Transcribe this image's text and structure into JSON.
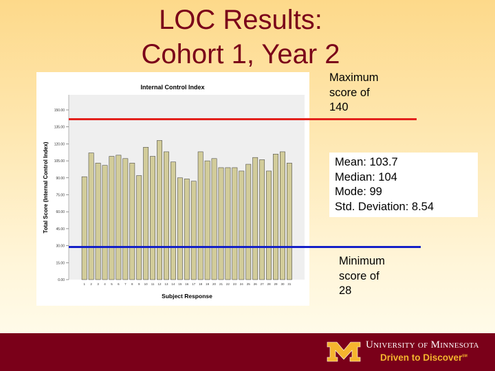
{
  "slide": {
    "title_line1": "LOC Results:",
    "title_line2": "Cohort 1, Year 2",
    "max_note": [
      "Maximum",
      "score of",
      "140"
    ],
    "min_note": [
      "Minimum",
      "score of",
      "28"
    ],
    "stats": [
      "Mean: 103.7",
      "Median: 104",
      "Mode: 99",
      "Std. Deviation: 8.54"
    ],
    "max_line": {
      "value": 140,
      "color": "#e3211c"
    },
    "min_line": {
      "value": 28,
      "color": "#1420c8"
    }
  },
  "footer": {
    "university": "University of Minnesota",
    "tagline": "Driven to Discover",
    "tagline_mark": "SM",
    "background": "#7a0019",
    "accent": "#f5b52e"
  },
  "chart_data": {
    "type": "bar",
    "title": "Internal Control Index",
    "xlabel": "Subject Response",
    "ylabel": "Total Score (Internal Control Index)",
    "ylim": [
      0,
      150
    ],
    "yticks": [
      "0.00",
      "15.00",
      "30.00",
      "45.00",
      "60.00",
      "75.00",
      "90.00",
      "105.00",
      "120.00",
      "135.00",
      "150.00"
    ],
    "categories": [
      "1",
      "2",
      "3",
      "4",
      "5",
      "6",
      "7",
      "8",
      "9",
      "10",
      "11",
      "12",
      "13",
      "14",
      "15",
      "16",
      "17",
      "18",
      "19",
      "20",
      "21",
      "22",
      "23",
      "24",
      "25",
      "26",
      "27",
      "28",
      "29",
      "30",
      "31"
    ],
    "values": [
      91,
      112,
      103,
      101,
      109,
      110,
      107,
      103,
      92,
      117,
      109,
      123,
      113,
      104,
      90,
      89,
      87,
      113,
      105,
      107,
      99,
      99,
      99,
      96,
      102,
      108,
      106,
      96,
      111,
      113,
      103
    ],
    "bar_color": "#d2cc9a",
    "plot_background": "#efefef",
    "grid": false
  }
}
